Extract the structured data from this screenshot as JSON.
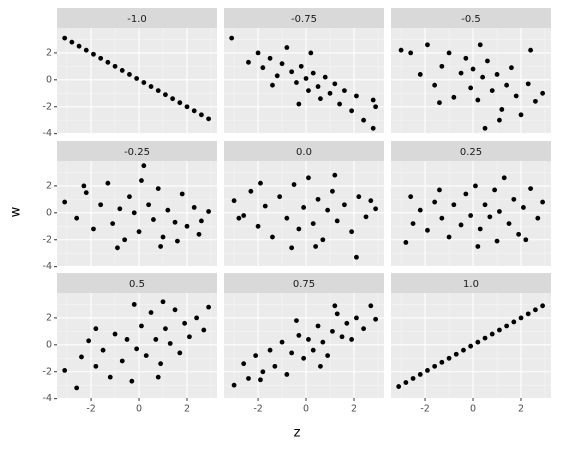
{
  "axis_labels": {
    "x": "z",
    "y": "w"
  },
  "chart_data": [
    {
      "type": "scatter",
      "title": "-1.0",
      "color": "#000000",
      "grid": true,
      "xlim": [
        -3.42,
        3.25
      ],
      "ylim": [
        -3.95,
        3.85
      ],
      "xticks": [
        -2,
        0,
        2
      ],
      "yticks": [
        -4,
        -2,
        0,
        2
      ],
      "x": [
        -3.1,
        -2.8,
        -2.5,
        -2.2,
        -1.9,
        -1.6,
        -1.3,
        -1.0,
        -0.7,
        -0.4,
        -0.1,
        0.2,
        0.5,
        0.8,
        1.1,
        1.4,
        1.7,
        2.0,
        2.3,
        2.6,
        2.9
      ],
      "values": [
        3.1,
        2.8,
        2.5,
        2.2,
        1.9,
        1.6,
        1.3,
        1.0,
        0.7,
        0.4,
        0.1,
        -0.2,
        -0.5,
        -0.8,
        -1.1,
        -1.4,
        -1.7,
        -2.0,
        -2.3,
        -2.6,
        -2.9
      ]
    },
    {
      "type": "scatter",
      "title": "-0.75",
      "color": "#000000",
      "grid": true,
      "xlim": [
        -3.42,
        3.25
      ],
      "ylim": [
        -3.95,
        3.85
      ],
      "xticks": [
        -2,
        0,
        2
      ],
      "yticks": [
        -4,
        -2,
        0,
        2
      ],
      "x": [
        -3.1,
        -2.4,
        -2.0,
        -1.8,
        -1.5,
        -1.2,
        -1.0,
        -0.8,
        -0.6,
        -0.4,
        -0.2,
        0,
        0.1,
        0.3,
        0.5,
        0.6,
        0.8,
        1.0,
        1.2,
        1.4,
        1.6,
        1.9,
        2.1,
        2.4,
        2.8,
        2.9,
        2.8,
        -0.3,
        0.2,
        -1.4
      ],
      "values": [
        3.1,
        1.3,
        2.0,
        0.9,
        1.6,
        0.3,
        1.2,
        2.4,
        0.6,
        -0.2,
        1.0,
        0.1,
        -0.8,
        0.5,
        -0.5,
        -1.4,
        0.2,
        -1.0,
        -0.3,
        -1.8,
        -0.8,
        -2.3,
        -1.2,
        -3.0,
        -1.5,
        -2.0,
        -3.6,
        -1.8,
        2.0,
        -0.4
      ]
    },
    {
      "type": "scatter",
      "title": "-0.5",
      "color": "#000000",
      "grid": true,
      "xlim": [
        -3.42,
        3.25
      ],
      "ylim": [
        -3.95,
        3.85
      ],
      "xticks": [
        -2,
        0,
        2
      ],
      "yticks": [
        -4,
        -2,
        0,
        2
      ],
      "x": [
        -3.0,
        -2.6,
        -2.2,
        -1.9,
        -1.6,
        -1.3,
        -1.0,
        -0.8,
        -0.5,
        -0.3,
        -0.1,
        0,
        0.2,
        0.4,
        0.6,
        0.8,
        1.0,
        1.2,
        1.4,
        1.6,
        1.8,
        2.0,
        2.3,
        2.6,
        2.9,
        0.5,
        -1.4,
        0.3,
        2.4,
        1.1
      ],
      "values": [
        2.2,
        2.0,
        0.4,
        2.6,
        -0.4,
        1.0,
        2.0,
        -1.3,
        0.5,
        1.6,
        -0.6,
        0.8,
        -1.5,
        0.2,
        1.4,
        -0.8,
        0.4,
        -2.2,
        -0.4,
        0.9,
        -1.2,
        -2.6,
        -0.3,
        -1.6,
        -1.0,
        -3.6,
        -1.7,
        2.6,
        2.2,
        -3.0
      ]
    },
    {
      "type": "scatter",
      "title": "-0.25",
      "color": "#000000",
      "grid": true,
      "xlim": [
        -3.42,
        3.25
      ],
      "ylim": [
        -3.95,
        3.85
      ],
      "xticks": [
        -2,
        0,
        2
      ],
      "yticks": [
        -4,
        -2,
        0,
        2
      ],
      "x": [
        -3.1,
        -2.6,
        -2.2,
        -1.9,
        -1.6,
        -1.3,
        -1.1,
        -0.8,
        -0.6,
        -0.4,
        -0.2,
        0,
        0.2,
        0.4,
        0.6,
        0.8,
        1.0,
        1.2,
        1.5,
        1.8,
        2.0,
        2.3,
        2.6,
        2.9,
        -0.9,
        0.9,
        1.6,
        -2.3,
        2.5,
        0.1
      ],
      "values": [
        0.8,
        -0.4,
        1.5,
        -1.2,
        0.6,
        2.2,
        -0.8,
        0.3,
        -2.0,
        1.2,
        0.0,
        -1.4,
        3.5,
        0.6,
        -0.5,
        1.8,
        -1.8,
        0.2,
        -0.7,
        1.4,
        -1.0,
        0.4,
        -0.6,
        0.1,
        -2.6,
        -2.5,
        -2.1,
        2.0,
        -1.6,
        2.4
      ]
    },
    {
      "type": "scatter",
      "title": "0.0",
      "color": "#000000",
      "grid": true,
      "xlim": [
        -3.42,
        3.25
      ],
      "ylim": [
        -3.95,
        3.85
      ],
      "xticks": [
        -2,
        0,
        2
      ],
      "yticks": [
        -4,
        -2,
        0,
        2
      ],
      "x": [
        -3.0,
        -2.6,
        -2.3,
        -2.0,
        -1.7,
        -1.4,
        -1.1,
        -0.8,
        -0.5,
        -0.3,
        -0.1,
        0.1,
        0.3,
        0.5,
        0.7,
        0.9,
        1.1,
        1.3,
        1.6,
        1.9,
        2.2,
        2.5,
        2.9,
        2.1,
        -0.6,
        1.2,
        -1.9,
        0.4,
        2.7,
        -2.8
      ],
      "values": [
        0.9,
        -0.2,
        1.6,
        -1.0,
        0.5,
        -1.8,
        1.2,
        -0.4,
        2.1,
        -1.2,
        0.4,
        2.6,
        -0.8,
        1.0,
        -2.0,
        0.2,
        1.6,
        -0.6,
        0.6,
        -1.4,
        1.2,
        -0.3,
        0.3,
        -3.3,
        -2.6,
        2.8,
        2.2,
        -2.5,
        0.9,
        -0.4
      ]
    },
    {
      "type": "scatter",
      "title": "0.25",
      "color": "#000000",
      "grid": true,
      "xlim": [
        -3.42,
        3.25
      ],
      "ylim": [
        -3.95,
        3.85
      ],
      "xticks": [
        -2,
        0,
        2
      ],
      "yticks": [
        -4,
        -2,
        0,
        2
      ],
      "x": [
        -2.8,
        -2.5,
        -2.2,
        -1.9,
        -1.6,
        -1.3,
        -1.0,
        -0.8,
        -0.5,
        -0.3,
        -0.1,
        0.1,
        0.3,
        0.5,
        0.7,
        0.9,
        1.1,
        1.3,
        1.5,
        1.7,
        1.9,
        2.1,
        2.4,
        2.7,
        2.9,
        -1.4,
        0.2,
        1.0,
        2.2,
        -2.6
      ],
      "values": [
        -2.2,
        -0.8,
        0.2,
        -1.3,
        0.8,
        -0.4,
        -1.8,
        0.6,
        -0.9,
        1.4,
        -0.2,
        2.0,
        -1.2,
        0.6,
        -0.3,
        1.7,
        0.1,
        2.6,
        -0.8,
        1.0,
        -1.6,
        0.4,
        1.8,
        -0.4,
        0.8,
        1.7,
        -2.5,
        -2.1,
        -2.0,
        1.2
      ]
    },
    {
      "type": "scatter",
      "title": "0.5",
      "color": "#000000",
      "grid": true,
      "xlim": [
        -3.42,
        3.25
      ],
      "ylim": [
        -3.95,
        3.85
      ],
      "xticks": [
        -2,
        0,
        2
      ],
      "yticks": [
        -4,
        -2,
        0,
        2
      ],
      "x": [
        -3.1,
        -2.6,
        -2.4,
        -2.1,
        -1.8,
        -1.5,
        -1.2,
        -1.0,
        -0.7,
        -0.5,
        -0.3,
        -0.1,
        0.1,
        0.3,
        0.5,
        0.7,
        0.9,
        1.1,
        1.3,
        1.5,
        1.7,
        1.9,
        2.1,
        2.4,
        2.7,
        2.9,
        -0.2,
        0.8,
        -1.8,
        1.0
      ],
      "values": [
        -1.9,
        -3.2,
        -0.9,
        0.3,
        -1.6,
        -0.4,
        -2.4,
        0.8,
        -1.2,
        0.4,
        -2.7,
        -0.3,
        1.4,
        -0.8,
        2.4,
        0.4,
        -1.4,
        1.2,
        0.1,
        2.6,
        -0.6,
        1.6,
        0.6,
        2.0,
        1.1,
        2.8,
        3.0,
        -2.4,
        1.2,
        3.2
      ]
    },
    {
      "type": "scatter",
      "title": "0.75",
      "color": "#000000",
      "grid": true,
      "xlim": [
        -3.42,
        3.25
      ],
      "ylim": [
        -3.95,
        3.85
      ],
      "xticks": [
        -2,
        0,
        2
      ],
      "yticks": [
        -4,
        -2,
        0,
        2
      ],
      "x": [
        -3.0,
        -2.6,
        -2.4,
        -2.1,
        -1.8,
        -1.5,
        -1.3,
        -1.0,
        -0.8,
        -0.6,
        -0.3,
        -0.1,
        0.1,
        0.3,
        0.5,
        0.7,
        0.9,
        1.1,
        1.3,
        1.5,
        1.7,
        1.9,
        2.1,
        2.4,
        2.7,
        2.9,
        -1.9,
        -0.4,
        0.6,
        1.2
      ],
      "values": [
        -3.0,
        -1.4,
        -2.5,
        -0.8,
        -2.0,
        -0.4,
        -1.6,
        0.2,
        -2.2,
        -0.6,
        0.7,
        -1.0,
        0.4,
        -0.4,
        1.4,
        0.2,
        -0.8,
        1.0,
        2.3,
        0.6,
        1.6,
        0.4,
        2.0,
        1.2,
        2.9,
        1.9,
        -2.6,
        1.8,
        -1.6,
        2.9
      ]
    },
    {
      "type": "scatter",
      "title": "1.0",
      "color": "#000000",
      "grid": true,
      "xlim": [
        -3.42,
        3.25
      ],
      "ylim": [
        -3.95,
        3.85
      ],
      "xticks": [
        -2,
        0,
        2
      ],
      "yticks": [
        -4,
        -2,
        0,
        2
      ],
      "x": [
        -3.1,
        -2.8,
        -2.5,
        -2.2,
        -1.9,
        -1.6,
        -1.3,
        -1.0,
        -0.7,
        -0.4,
        -0.1,
        0.2,
        0.5,
        0.8,
        1.1,
        1.4,
        1.7,
        2.0,
        2.3,
        2.6,
        2.9
      ],
      "values": [
        -3.1,
        -2.8,
        -2.5,
        -2.2,
        -1.9,
        -1.6,
        -1.3,
        -1.0,
        -0.7,
        -0.4,
        -0.1,
        0.2,
        0.5,
        0.8,
        1.1,
        1.4,
        1.7,
        2.0,
        2.3,
        2.6,
        2.9
      ]
    }
  ]
}
